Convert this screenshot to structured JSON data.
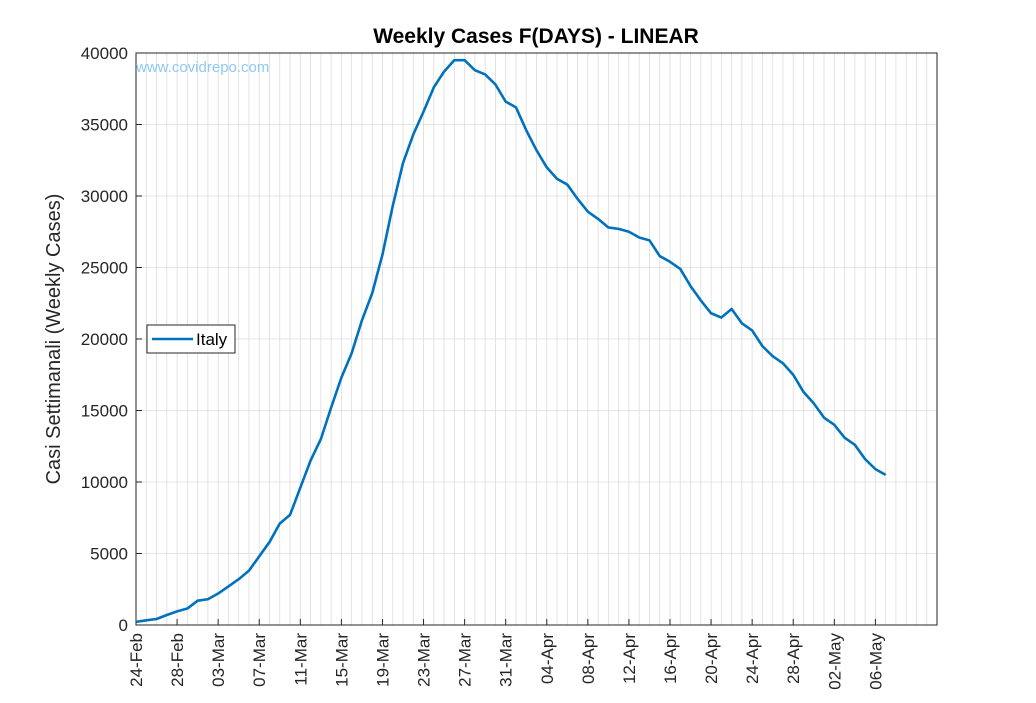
{
  "chart_data": {
    "type": "line",
    "title": "Weekly Cases F(DAYS) - LINEAR",
    "xlabel": "",
    "ylabel": "Casi Settimanali (Weekly Cases)",
    "watermark": "www.covidrepo.com",
    "ylim": [
      0,
      40000
    ],
    "yticks": [
      "0",
      "5000",
      "10000",
      "15000",
      "20000",
      "25000",
      "30000",
      "35000",
      "40000"
    ],
    "x_tick_labels": [
      "24-Feb",
      "28-Feb",
      "03-Mar",
      "07-Mar",
      "11-Mar",
      "15-Mar",
      "19-Mar",
      "23-Mar",
      "27-Mar",
      "31-Mar",
      "04-Apr",
      "08-Apr",
      "12-Apr",
      "16-Apr",
      "20-Apr",
      "24-Apr",
      "28-Apr",
      "02-May",
      "06-May"
    ],
    "x_start": "24-Feb",
    "x_end": "07-May",
    "xlim_days": [
      0,
      78
    ],
    "grid": true,
    "legend_position": "left-middle",
    "colors": {
      "series": "#0072bd",
      "grid": "#dcdcdc",
      "axis": "#262626"
    },
    "series": [
      {
        "name": "Italy",
        "x": [
          "24-Feb",
          "25-Feb",
          "26-Feb",
          "27-Feb",
          "28-Feb",
          "29-Feb",
          "01-Mar",
          "02-Mar",
          "03-Mar",
          "04-Mar",
          "05-Mar",
          "06-Mar",
          "07-Mar",
          "08-Mar",
          "09-Mar",
          "10-Mar",
          "11-Mar",
          "12-Mar",
          "13-Mar",
          "14-Mar",
          "15-Mar",
          "16-Mar",
          "17-Mar",
          "18-Mar",
          "19-Mar",
          "20-Mar",
          "21-Mar",
          "22-Mar",
          "23-Mar",
          "24-Mar",
          "25-Mar",
          "26-Mar",
          "27-Mar",
          "28-Mar",
          "29-Mar",
          "30-Mar",
          "31-Mar",
          "01-Apr",
          "02-Apr",
          "03-Apr",
          "04-Apr",
          "05-Apr",
          "06-Apr",
          "07-Apr",
          "08-Apr",
          "09-Apr",
          "10-Apr",
          "11-Apr",
          "12-Apr",
          "13-Apr",
          "14-Apr",
          "15-Apr",
          "16-Apr",
          "17-Apr",
          "18-Apr",
          "19-Apr",
          "20-Apr",
          "21-Apr",
          "22-Apr",
          "23-Apr",
          "24-Apr",
          "25-Apr",
          "26-Apr",
          "27-Apr",
          "28-Apr",
          "29-Apr",
          "30-Apr",
          "01-May",
          "02-May",
          "03-May",
          "04-May",
          "05-May",
          "06-May",
          "07-May"
        ],
        "values": [
          220,
          330,
          420,
          700,
          950,
          1150,
          1700,
          1800,
          2200,
          2700,
          3200,
          3800,
          4800,
          5800,
          7100,
          7700,
          9600,
          11500,
          13000,
          15200,
          17300,
          19000,
          21300,
          23200,
          25900,
          29300,
          32300,
          34300,
          35900,
          37600,
          38700,
          39500,
          39500,
          38800,
          38500,
          37800,
          36600,
          36200,
          34600,
          33200,
          32000,
          31200,
          30800,
          29800,
          28900,
          28400,
          27800,
          27700,
          27500,
          27100,
          26900,
          25800,
          25400,
          24900,
          23700,
          22700,
          21800,
          21500,
          22100,
          21100,
          20600,
          19500,
          18800,
          18300,
          17500,
          16300,
          15500,
          14500,
          14000,
          13100,
          12600,
          11600,
          10900,
          10500
        ]
      }
    ]
  }
}
